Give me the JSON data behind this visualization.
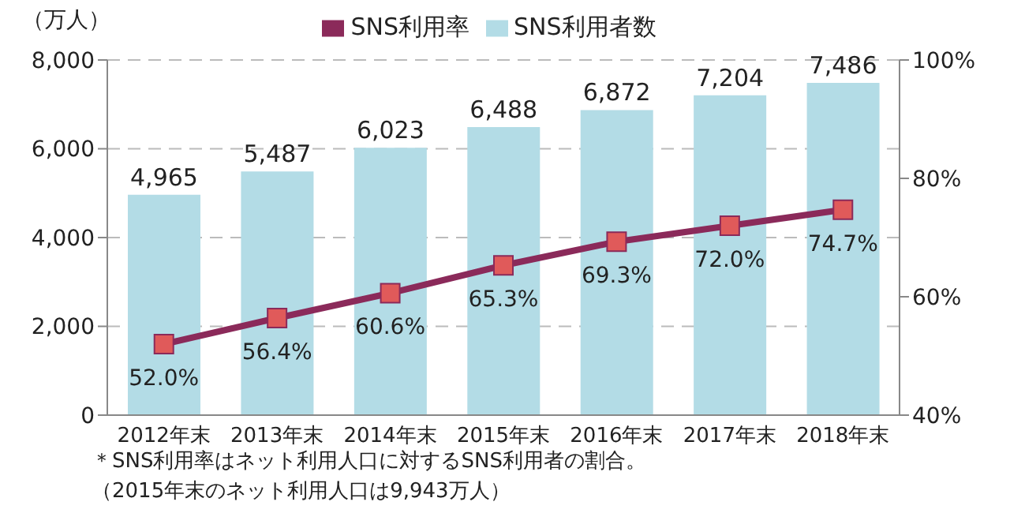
{
  "chart_data": {
    "type": "bar",
    "categories": [
      "2012年末",
      "2013年末",
      "2014年末",
      "2015年末",
      "2016年末",
      "2017年末",
      "2018年末"
    ],
    "series": [
      {
        "name": "SNS利用者数",
        "color": "#b3dce6",
        "values": [
          4965,
          5487,
          6023,
          6488,
          6872,
          7204,
          7486
        ],
        "value_labels": [
          "4,965",
          "5,487",
          "6,023",
          "6,488",
          "6,872",
          "7,204",
          "7,486"
        ]
      },
      {
        "name": "SNS利用率",
        "type": "line",
        "axis": "y2",
        "color": "#8b2a5a",
        "marker": "square",
        "values": [
          52.0,
          56.4,
          60.6,
          65.3,
          69.3,
          72.0,
          74.7
        ],
        "value_labels": [
          "52.0%",
          "56.4%",
          "60.6%",
          "65.3%",
          "69.3%",
          "72.0%",
          "74.7%"
        ]
      }
    ],
    "ylabel": "（万人）",
    "ylim": [
      0,
      8000
    ],
    "yticks": [
      {
        "value": 0,
        "label": "0"
      },
      {
        "value": 2000,
        "label": "2,000"
      },
      {
        "value": 4000,
        "label": "4,000"
      },
      {
        "value": 6000,
        "label": "6,000"
      },
      {
        "value": 8000,
        "label": "8,000"
      }
    ],
    "y2lim": [
      40,
      100
    ],
    "y2ticks": [
      {
        "value": 40,
        "label": "40%"
      },
      {
        "value": 60,
        "label": "60%"
      },
      {
        "value": 80,
        "label": "80%"
      },
      {
        "value": 100,
        "label": "100%"
      }
    ],
    "grid": "y",
    "legend": "top",
    "annotations": [
      "＊SNS利用率はネット利用人口に対するSNS利用者の割合。",
      "（2015年末のネット利用人口は9,943万人）"
    ]
  }
}
